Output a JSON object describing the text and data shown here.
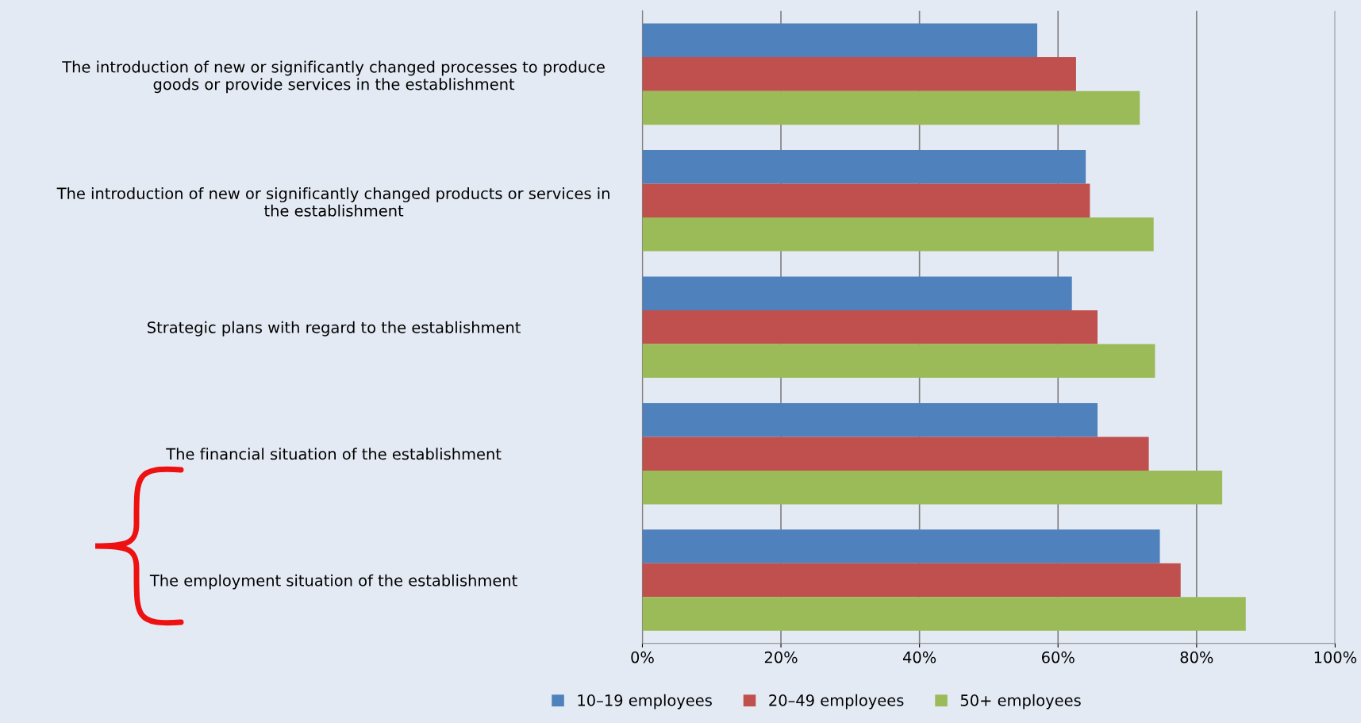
{
  "chart_data": {
    "type": "bar",
    "orientation": "horizontal",
    "categories": [
      "The introduction of new or significantly changed processes to produce\ngoods or provide services in the establishment",
      "The introduction of new or significantly changed products or services in\nthe establishment",
      "Strategic plans with regard to the establishment",
      "The financial situation of the establishment",
      "The employment situation of the establishment"
    ],
    "series": [
      {
        "name": "10–19 employees",
        "color": "#4f81bd",
        "values": [
          57,
          64,
          62,
          65.7,
          74.7
        ]
      },
      {
        "name": "20–49 employees",
        "color": "#c0504d",
        "values": [
          62.6,
          64.6,
          65.7,
          73.1,
          77.7
        ]
      },
      {
        "name": "50+ employees",
        "color": "#9bbb59",
        "values": [
          71.8,
          73.8,
          74,
          83.7,
          87.1
        ]
      }
    ],
    "xlim": [
      0,
      100
    ],
    "xticks": [
      {
        "value": 0,
        "label": "0%"
      },
      {
        "value": 20,
        "label": "20%"
      },
      {
        "value": 40,
        "label": "40%"
      },
      {
        "value": 60,
        "label": "60%"
      },
      {
        "value": 80,
        "label": "80%"
      },
      {
        "value": 100,
        "label": "100%"
      }
    ],
    "grid": "x",
    "legend": "bottom"
  }
}
